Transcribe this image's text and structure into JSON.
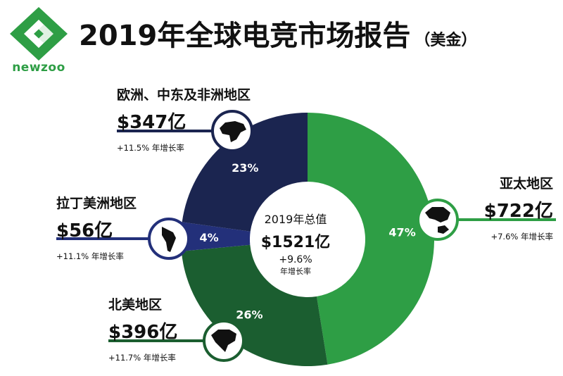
{
  "header": {
    "brand": "newzoo",
    "title": "2019年全球电竞市场报告",
    "unit": "（美金）"
  },
  "center": {
    "title": "2019年总值",
    "total": "$1521亿",
    "growth": "+9.6%",
    "growth_label": "年增长率"
  },
  "regions": {
    "asia_pacific": {
      "name": "亚太地区",
      "value": "$722亿",
      "growth": "+7.6% 年增长率",
      "icon": "asia-pacific-map-icon"
    },
    "emea": {
      "name": "欧洲、中东及非洲地区",
      "value": "$347亿",
      "growth": "+11.5% 年增长率",
      "icon": "emea-map-icon"
    },
    "latam": {
      "name": "拉丁美洲地区",
      "value": "$56亿",
      "growth": "+11.1% 年增长率",
      "icon": "latin-america-map-icon"
    },
    "north_america": {
      "name": "北美地区",
      "value": "$396亿",
      "growth": "+11.7% 年增长率",
      "icon": "north-america-map-icon"
    }
  },
  "chart_data": {
    "type": "pie",
    "categories": [
      "亚太地区",
      "北美地区",
      "拉丁美洲地区",
      "欧洲、中东及非洲地区"
    ],
    "values": [
      722,
      396,
      56,
      347
    ],
    "percent_labels": [
      "47%",
      "26%",
      "4%",
      "23%"
    ],
    "colors": [
      "#2e9e45",
      "#1b5e30",
      "#23307a",
      "#1b2550"
    ],
    "title": "2019年全球电竞市场报告"
  }
}
